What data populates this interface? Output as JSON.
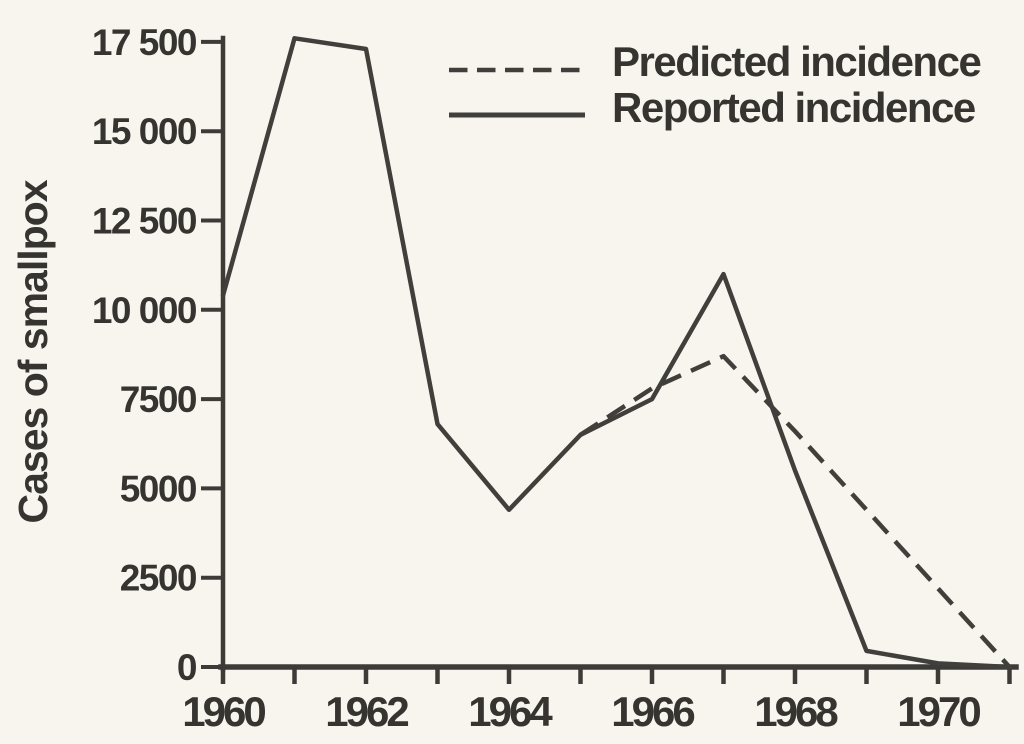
{
  "figure": {
    "background": "#f8f5ee",
    "ink": "#3d3b38",
    "description": "Scanned line chart of predicted vs reported smallpox incidence, 1960-1971"
  },
  "chart_data": {
    "type": "line",
    "title": "",
    "xlabel": "",
    "ylabel": "Cases of smallpox",
    "xlim": [
      1960,
      1971
    ],
    "ylim": [
      0,
      17750
    ],
    "grid": false,
    "legend_position": "top-right",
    "yticks": [
      {
        "value": 0,
        "label": "0"
      },
      {
        "value": 2500,
        "label": "2500"
      },
      {
        "value": 5000,
        "label": "5000"
      },
      {
        "value": 7500,
        "label": "7500"
      },
      {
        "value": 10000,
        "label": "10 000"
      },
      {
        "value": 12500,
        "label": "12 500"
      },
      {
        "value": 15000,
        "label": "15 000"
      },
      {
        "value": 17500,
        "label": "17 500"
      }
    ],
    "xticks": [
      {
        "value": 1960,
        "label": "1960"
      },
      {
        "value": 1961,
        "label": ""
      },
      {
        "value": 1962,
        "label": "1962"
      },
      {
        "value": 1963,
        "label": ""
      },
      {
        "value": 1964,
        "label": "1964"
      },
      {
        "value": 1965,
        "label": ""
      },
      {
        "value": 1966,
        "label": "1966"
      },
      {
        "value": 1967,
        "label": ""
      },
      {
        "value": 1968,
        "label": "1968"
      },
      {
        "value": 1969,
        "label": ""
      },
      {
        "value": 1970,
        "label": "1970"
      },
      {
        "value": 1971,
        "label": ""
      }
    ],
    "series": [
      {
        "name": "Predicted incidence",
        "line_style": "dashed",
        "x": [
          1965,
          1966,
          1967,
          1968,
          1969,
          1970,
          1971
        ],
        "values": [
          6500,
          7800,
          8700,
          6600,
          4400,
          2200,
          0
        ]
      },
      {
        "name": "Reported incidence",
        "line_style": "solid",
        "x": [
          1960,
          1961,
          1962,
          1963,
          1964,
          1965,
          1966,
          1967,
          1968,
          1969,
          1970,
          1971
        ],
        "values": [
          10400,
          17600,
          17300,
          6800,
          4400,
          6500,
          7500,
          11000,
          5500,
          450,
          100,
          0
        ]
      }
    ]
  },
  "legend": {
    "items": [
      {
        "label": "Predicted incidence",
        "style": "dashed"
      },
      {
        "label": "Reported incidence",
        "style": "solid"
      }
    ]
  }
}
